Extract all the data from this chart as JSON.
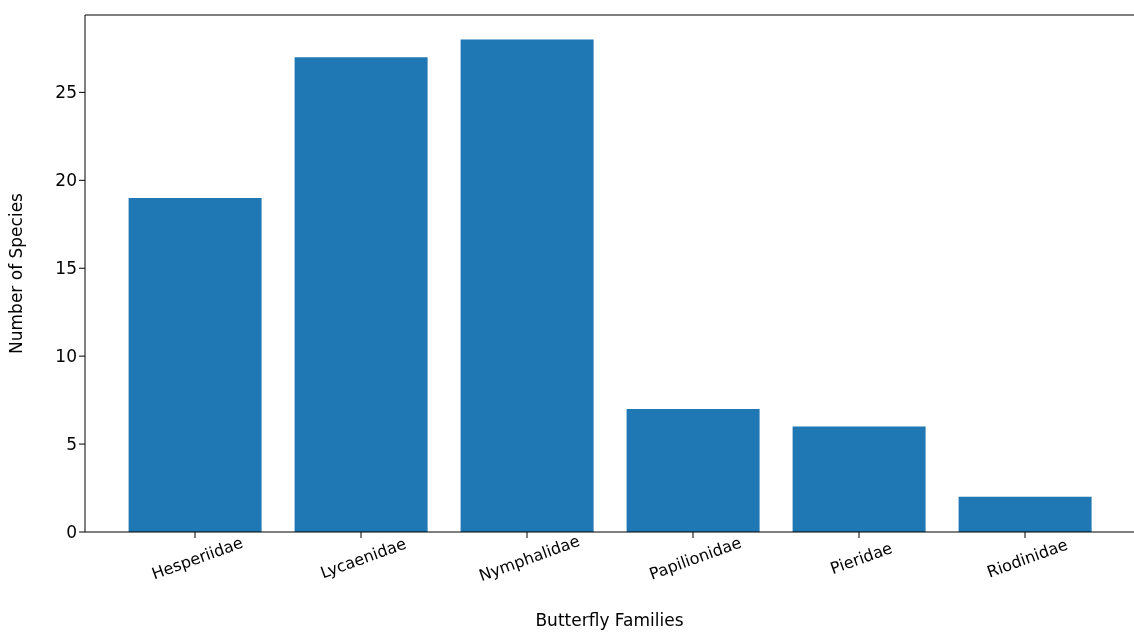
{
  "chart_data": {
    "type": "bar",
    "xlabel": "Butterfly Families",
    "ylabel": "Number of Species",
    "categories": [
      "Hesperiidae",
      "Lycaenidae",
      "Nymphalidae",
      "Papilionidae",
      "Pieridae",
      "Riodinidae"
    ],
    "values": [
      19,
      27,
      28,
      7,
      6,
      2
    ],
    "color": "#1f77b4",
    "ylim": [
      0,
      29.4
    ],
    "yticks": [
      0,
      5,
      10,
      15,
      20,
      25
    ],
    "grid": false,
    "legend": false
  }
}
